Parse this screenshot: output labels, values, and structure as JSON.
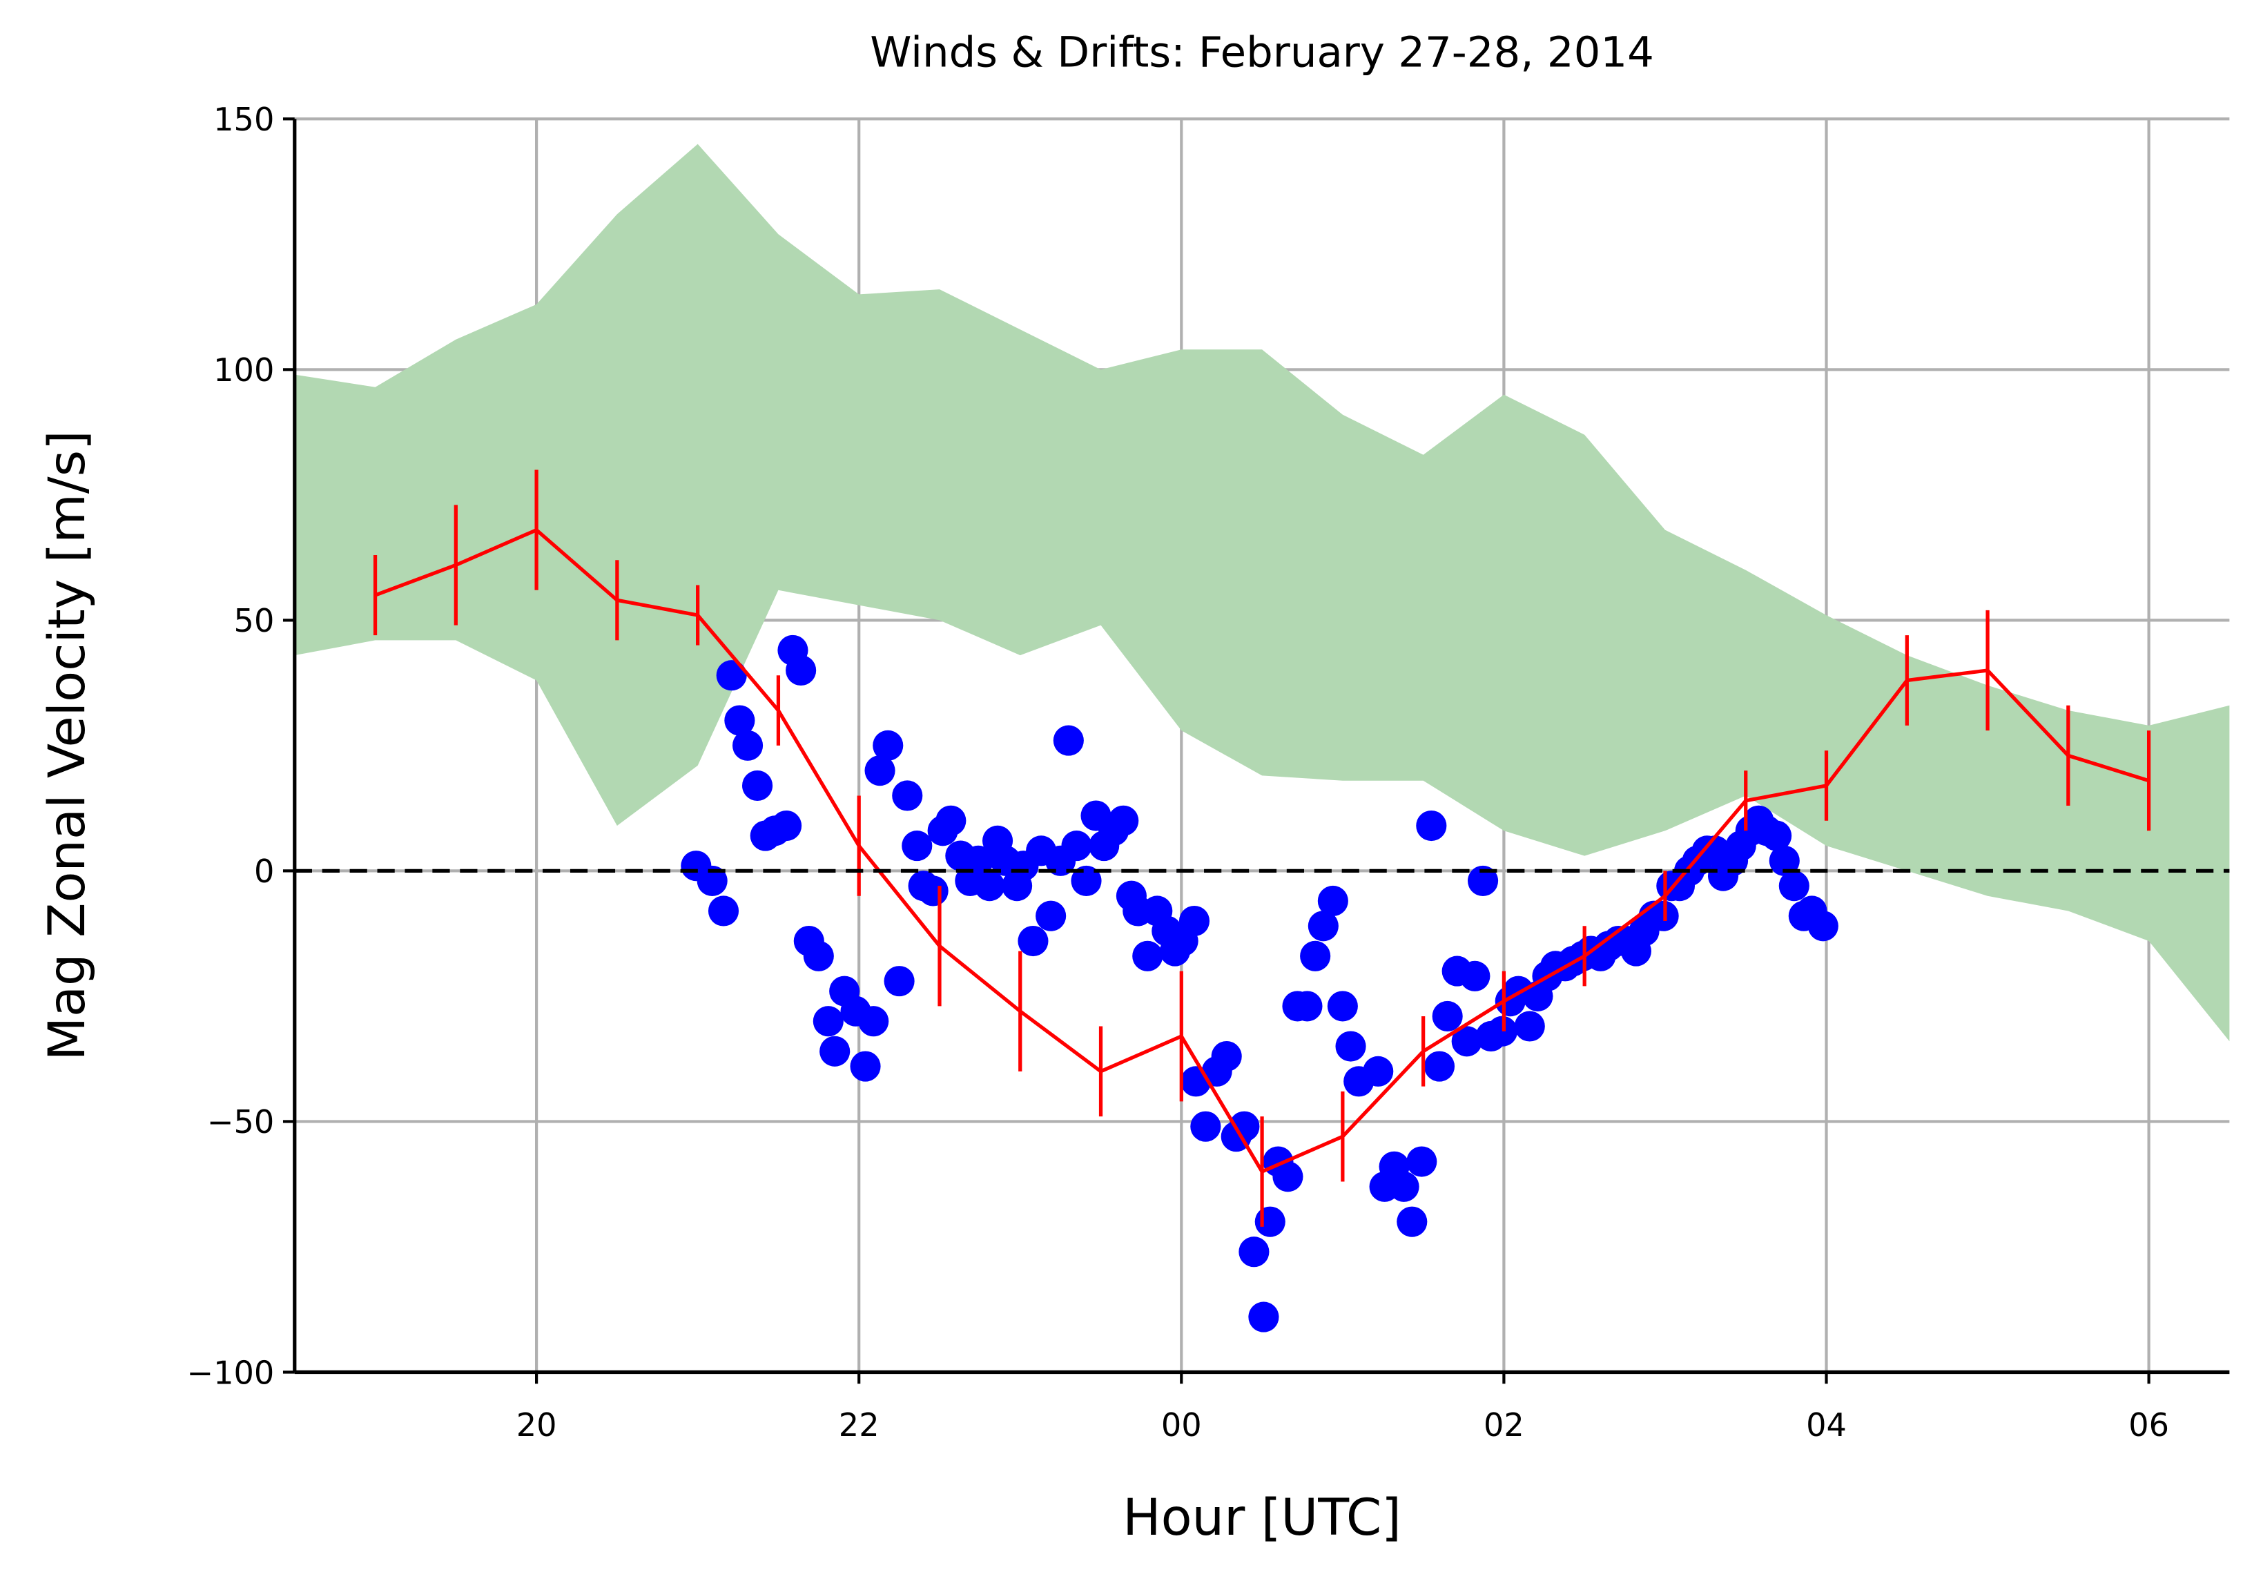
{
  "chart_data": {
    "type": "scatter",
    "title": "Winds & Drifts: February 27-28, 2014",
    "xlabel": "Hour [UTC]",
    "ylabel": "Mag Zonal Velocity [m/s]",
    "xlim": [
      18.5,
      30.5
    ],
    "ylim": [
      -100,
      150
    ],
    "xticks": [
      {
        "value": 20,
        "label": "20"
      },
      {
        "value": 22,
        "label": "22"
      },
      {
        "value": 24,
        "label": "00"
      },
      {
        "value": 26,
        "label": "02"
      },
      {
        "value": 28,
        "label": "04"
      },
      {
        "value": 30,
        "label": "06"
      }
    ],
    "yticks": [
      {
        "value": -100,
        "label": "−100"
      },
      {
        "value": -50,
        "label": "−50"
      },
      0,
      50,
      100,
      150
    ],
    "grid": true,
    "hline": 0,
    "series": [
      {
        "type": "band",
        "color": "#b2d8b2",
        "x": [
          18.5,
          19,
          19.5,
          20,
          20.5,
          21,
          21.5,
          22,
          22.5,
          23,
          23.5,
          24,
          24.5,
          25,
          25.5,
          26,
          26.5,
          27,
          27.5,
          28,
          28.5,
          29,
          29.5,
          30,
          30.5
        ],
        "upper": [
          99,
          96.5,
          106,
          113,
          131,
          145,
          127,
          115,
          116,
          108,
          100,
          104,
          104,
          91,
          83,
          95,
          87,
          68,
          60,
          51,
          43,
          37,
          32,
          29,
          33
        ],
        "lower": [
          43,
          46,
          46,
          38,
          9,
          21,
          56,
          53,
          50,
          43,
          49,
          28,
          19,
          18,
          18,
          8,
          3,
          8,
          15,
          5,
          0,
          -5,
          -8,
          -14,
          -34
        ]
      },
      {
        "type": "errorbar",
        "color": "#ff0000",
        "x": [
          19,
          19.5,
          20,
          20.5,
          21,
          21.5,
          22,
          22.5,
          23,
          23.5,
          24,
          24.5,
          25,
          25.5,
          26,
          26.5,
          27,
          27.5,
          28,
          28.5,
          29,
          29.5,
          30
        ],
        "values": [
          55,
          61,
          68,
          54,
          51,
          32,
          5,
          -15,
          -28,
          -40,
          -33,
          -60,
          -53,
          -36,
          -26,
          -17,
          -5,
          14,
          17,
          38,
          40,
          23,
          18
        ],
        "errors": [
          8,
          12,
          12,
          8,
          6,
          7,
          10,
          12,
          12,
          9,
          13,
          11,
          9,
          7,
          6,
          6,
          5,
          6,
          7,
          9,
          12,
          10,
          10
        ]
      },
      {
        "type": "scatter",
        "color": "#0000ff",
        "x": [
          20.99,
          21.09,
          21.16,
          21.21,
          21.26,
          21.31,
          21.37,
          21.42,
          21.48,
          21.55,
          21.59,
          21.64,
          21.69,
          21.75,
          21.81,
          21.85,
          21.91,
          21.98,
          22.04,
          22.09,
          22.13,
          22.18,
          22.25,
          22.3,
          22.36,
          22.4,
          22.46,
          22.52,
          22.57,
          22.63,
          22.69,
          22.74,
          22.81,
          22.86,
          22.91,
          22.98,
          23.02,
          23.08,
          23.13,
          23.19,
          23.25,
          23.3,
          23.35,
          23.41,
          23.47,
          23.52,
          23.58,
          23.64,
          23.69,
          23.73,
          23.79,
          23.85,
          23.91,
          23.96,
          24.01,
          24.08,
          24.09,
          24.15,
          24.22,
          24.28,
          24.34,
          24.39,
          24.45,
          24.51,
          24.55,
          24.6,
          24.66,
          24.72,
          24.78,
          24.83,
          24.88,
          24.94,
          25.0,
          25.05,
          25.1,
          25.22,
          25.26,
          25.32,
          25.38,
          25.43,
          25.49,
          25.55,
          25.6,
          25.65,
          25.71,
          25.77,
          25.82,
          25.87,
          25.92,
          25.99,
          26.04,
          26.09,
          26.16,
          26.21,
          26.27,
          26.32,
          26.38,
          26.43,
          26.49,
          26.54,
          26.6,
          26.65,
          26.71,
          26.76,
          26.82,
          26.87,
          26.93,
          26.99,
          27.04,
          27.09,
          27.15,
          27.2,
          27.26,
          27.31,
          27.36,
          27.42,
          27.47,
          27.53,
          27.58,
          27.63,
          27.69,
          27.74,
          27.8,
          27.86,
          27.91,
          27.98
        ],
        "values": [
          1,
          -2,
          -8,
          39,
          30,
          25,
          17,
          7,
          8,
          9,
          44,
          40,
          -14,
          -17,
          -30,
          -36,
          -24,
          -28,
          -39,
          -30,
          20,
          25,
          -22,
          15,
          5,
          -3,
          -4,
          8,
          10,
          3,
          -2,
          2,
          -3,
          6,
          2,
          -3,
          1,
          -14,
          4,
          -9,
          2,
          26,
          5,
          -2,
          11,
          5,
          8,
          10,
          -5,
          -8,
          -17,
          -8,
          -12,
          -16,
          -14,
          -10,
          -42,
          -51,
          -40,
          -37,
          -53,
          -51,
          -76,
          -89,
          -70,
          -58,
          -61,
          -27,
          -27,
          -17,
          -11,
          -6,
          -27,
          -35,
          -42,
          -40,
          -63,
          -59,
          -63,
          -70,
          -58,
          9,
          -39,
          -29,
          -20,
          -34,
          -21,
          -2,
          -33,
          -32,
          -26,
          -24,
          -31,
          -25,
          -21,
          -19,
          -19,
          -18,
          -17,
          -16,
          -17,
          -15,
          -14,
          -14,
          -16,
          -12,
          -9,
          -9,
          -3,
          -3,
          0,
          2,
          4,
          4,
          -1,
          2,
          5,
          8,
          10,
          8,
          7,
          2,
          -3,
          -9,
          -8,
          -11
        ]
      }
    ]
  }
}
